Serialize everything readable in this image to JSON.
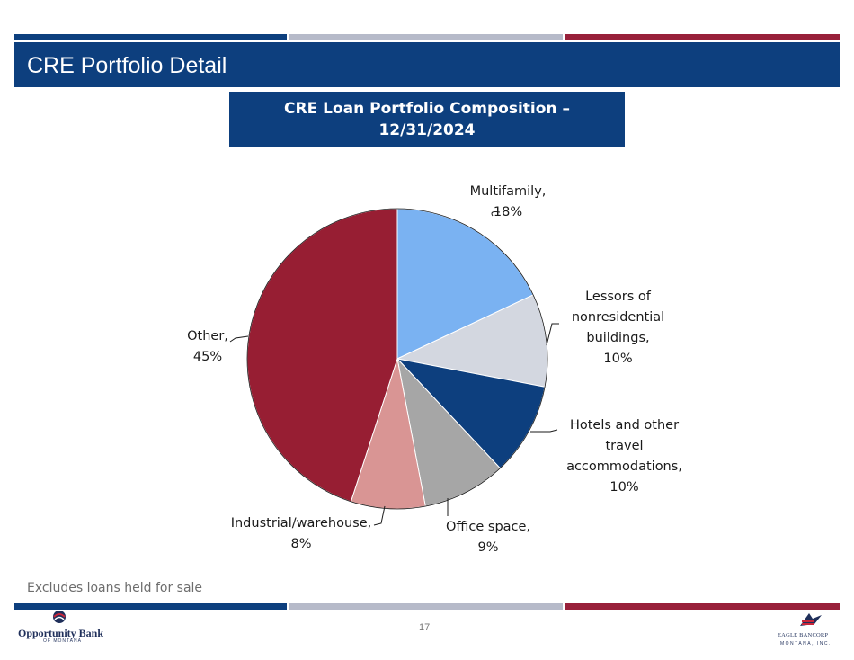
{
  "slide": {
    "title": "CRE Portfolio Detail",
    "chart_header_line1": "CRE Loan Portfolio Composition –",
    "chart_header_line2": "12/31/2024",
    "footnote": "Excludes loans held for sale",
    "page_number": "17"
  },
  "logos": {
    "left_name": "Opportunity Bank",
    "left_sub": "OF MONTANA",
    "right_name": "EAGLE BANCORP",
    "right_sub": "MONTANA, INC."
  },
  "colors": {
    "navy": "#0d3f7e",
    "gray_stripe": "#b6bac9",
    "red_stripe": "#98203a"
  },
  "chart_data": {
    "type": "pie",
    "title": "CRE Loan Portfolio Composition – 12/31/2024",
    "slices": [
      {
        "label": "Multifamily",
        "value": 18,
        "pct_text": "18%",
        "color": "#7ab2f2"
      },
      {
        "label": "Lessors of nonresidential buildings",
        "value": 10,
        "pct_text": "10%",
        "color": "#d3d7e0"
      },
      {
        "label": "Hotels and other travel accommodations",
        "value": 10,
        "pct_text": "10%",
        "color": "#0d3f7e"
      },
      {
        "label": "Office space",
        "value": 9,
        "pct_text": "9%",
        "color": "#a6a6a6"
      },
      {
        "label": "Industrial/warehouse",
        "value": 8,
        "pct_text": "8%",
        "color": "#d99594"
      },
      {
        "label": "Other",
        "value": 45,
        "pct_text": "45%",
        "color": "#971e33"
      }
    ],
    "label_lines": {
      "multifamily": [
        "Multifamily,",
        "18%"
      ],
      "lessors": [
        "Lessors of",
        "nonresidential",
        "buildings,",
        "10%"
      ],
      "hotels": [
        "Hotels and other",
        "travel",
        "accommodations,",
        "10%"
      ],
      "office": [
        "Office space,",
        "9%"
      ],
      "industrial": [
        "Industrial/warehouse,",
        "8%"
      ],
      "other": [
        "Other,",
        "45%"
      ]
    }
  }
}
